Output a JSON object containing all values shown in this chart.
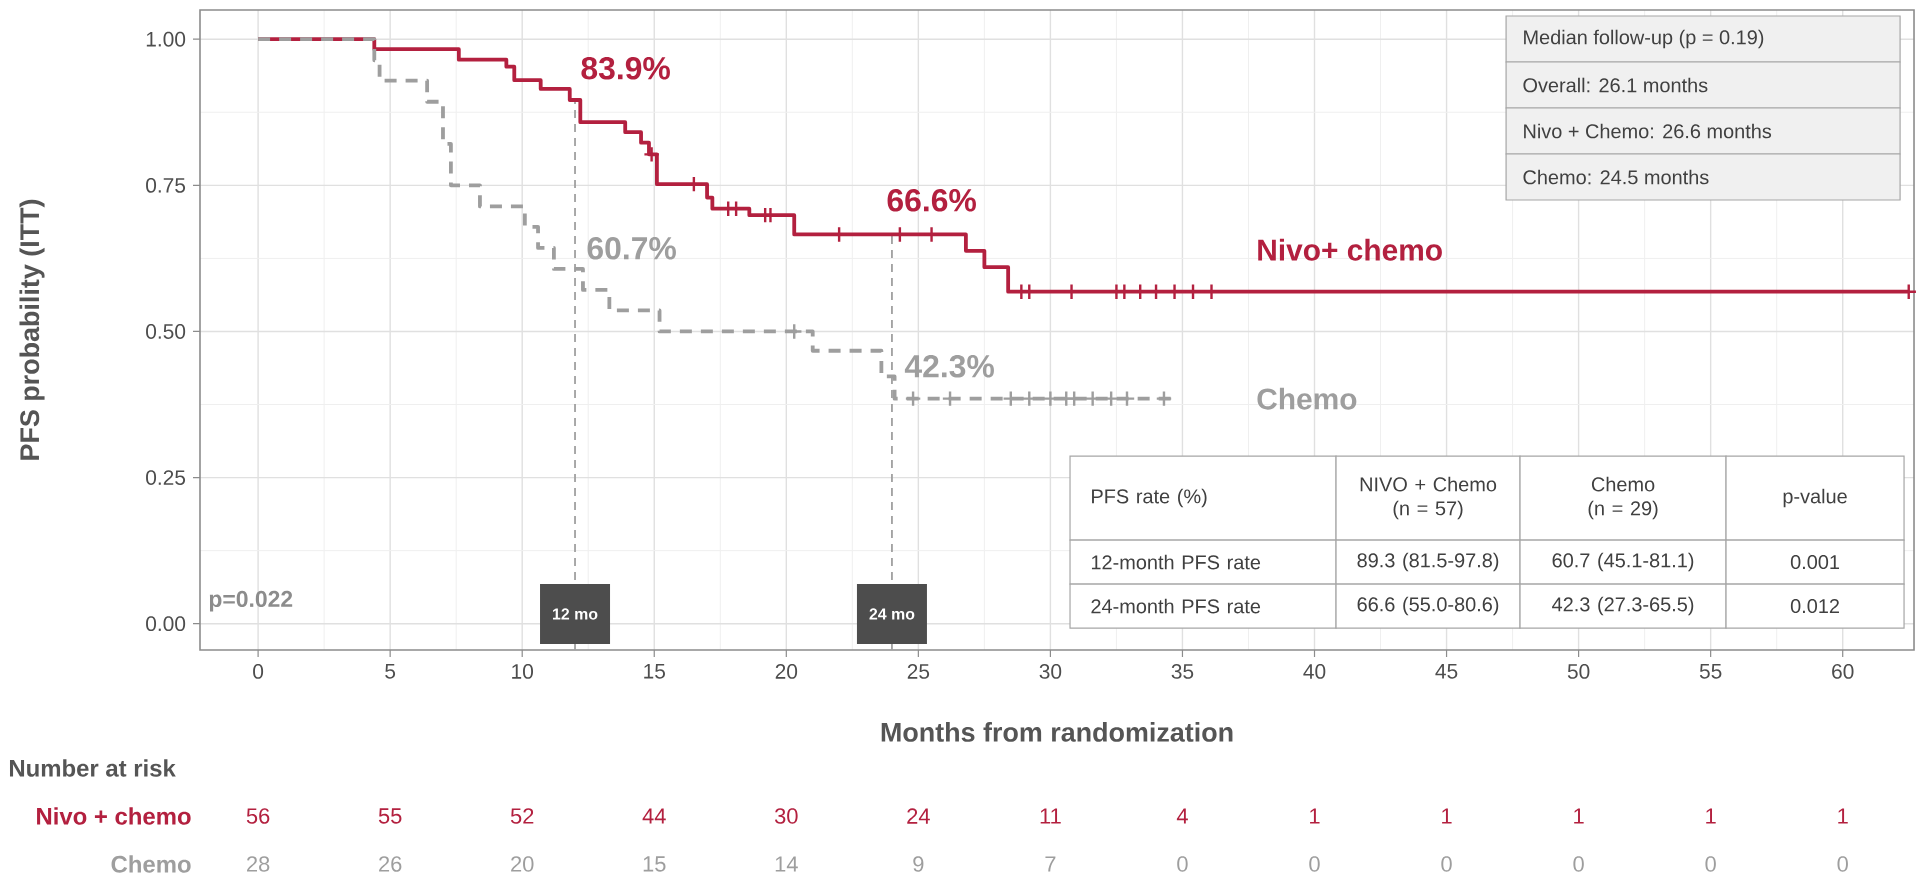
{
  "chart_data": [
    {
      "type": "step",
      "xlabel": "Months from randomization",
      "ylabel": "PFS probability (ITT)",
      "xlim": [
        -2.2,
        62.7
      ],
      "ylim": [
        -0.045,
        1.05
      ],
      "xticks": [
        0,
        5,
        10,
        15,
        20,
        25,
        30,
        35,
        40,
        45,
        50,
        55,
        60
      ],
      "yticks": [
        {
          "value": 0,
          "label": "0.00"
        },
        {
          "value": 0.25,
          "label": "0.25"
        },
        {
          "value": 0.5,
          "label": "0.50"
        },
        {
          "value": 0.75,
          "label": "0.75"
        },
        {
          "value": 1,
          "label": "1.00"
        }
      ],
      "grid": true,
      "series": [
        {
          "name": "Nivo+ chemo",
          "color": "#b3203f",
          "line_style": "solid",
          "x": [
            0,
            4.4,
            7.6,
            9.4,
            9.7,
            10.7,
            11.8,
            12.2,
            13.9,
            14.5,
            14.8,
            15.1,
            17.0,
            17.2,
            18.6,
            20.3,
            26.8,
            27.5,
            28.4,
            62.5
          ],
          "values": [
            1.0,
            0.983,
            0.965,
            0.953,
            0.93,
            0.915,
            0.896,
            0.858,
            0.841,
            0.823,
            0.803,
            0.752,
            0.729,
            0.71,
            0.699,
            0.666,
            0.638,
            0.61,
            0.568,
            0.568
          ]
        },
        {
          "name": "Chemo",
          "color": "#9e9e9e",
          "line_style": "dashed",
          "x": [
            0,
            4.4,
            4.6,
            6.4,
            7.0,
            7.3,
            8.4,
            10.1,
            10.6,
            11.2,
            12.3,
            13.3,
            15.2,
            21.0,
            23.6,
            24.1,
            34.6
          ],
          "values": [
            1.0,
            0.964,
            0.929,
            0.893,
            0.821,
            0.75,
            0.714,
            0.679,
            0.643,
            0.607,
            0.571,
            0.536,
            0.5,
            0.467,
            0.423,
            0.385,
            0.385
          ]
        },
        {
          "type": "scatter",
          "marker": "cross",
          "color": "#b3203f",
          "x": [
            14.9,
            16.5,
            17.8,
            18.1,
            19.2,
            19.4,
            22.0,
            24.3,
            25.5,
            28.9,
            29.2,
            30.8,
            32.5,
            32.8,
            33.4,
            34.0,
            34.7,
            35.4,
            36.1,
            62.5
          ],
          "values": [
            0.803,
            0.752,
            0.71,
            0.71,
            0.699,
            0.699,
            0.666,
            0.666,
            0.666,
            0.568,
            0.568,
            0.568,
            0.568,
            0.568,
            0.568,
            0.568,
            0.568,
            0.568,
            0.568,
            0.568
          ]
        },
        {
          "type": "scatter",
          "marker": "cross",
          "color": "#9e9e9e",
          "x": [
            20.3,
            24.8,
            26.2,
            28.5,
            29.2,
            30.0,
            30.6,
            30.9,
            31.6,
            32.3,
            32.9,
            34.3
          ],
          "values": [
            0.5,
            0.385,
            0.385,
            0.385,
            0.385,
            0.385,
            0.385,
            0.385,
            0.385,
            0.385,
            0.385,
            0.385
          ]
        }
      ],
      "ref_lines": [
        {
          "axis": "x",
          "value": 12,
          "label": "12 mo",
          "color": "#a0a0a0",
          "line_style": "dashed"
        },
        {
          "axis": "x",
          "value": 24,
          "label": "24 mo",
          "color": "#a0a0a0",
          "line_style": "dashed"
        }
      ],
      "annotations": [
        "83.9%",
        "66.6%",
        "60.7%",
        "42.3%",
        "p=0.022",
        "Median follow-up (p = 0.19)",
        "Overall: 26.1 months",
        "Nivo + Chemo: 26.6 months",
        "Chemo: 24.5 months",
        "PFS rate (%)",
        "NIVO + Chemo (n = 57)",
        "Chemo (n = 29)",
        "p-value",
        "12-month PFS rate",
        "89.3 (81.5-97.8)",
        "60.7 (45.1-81.1)",
        "0.001",
        "24-month PFS rate",
        "66.6 (55.0-80.6)",
        "42.3 (27.3-65.5)",
        "0.012"
      ]
    },
    {
      "type": "other",
      "title": "Number at risk",
      "annotations": [
        "Nivo + chemo",
        "56",
        "55",
        "52",
        "44",
        "30",
        "24",
        "11",
        "4",
        "1",
        "1",
        "1",
        "1",
        "1",
        "Chemo",
        "28",
        "26",
        "20",
        "15",
        "14",
        "9",
        "7",
        "0",
        "0",
        "0",
        "0",
        "0",
        "0"
      ]
    }
  ]
}
